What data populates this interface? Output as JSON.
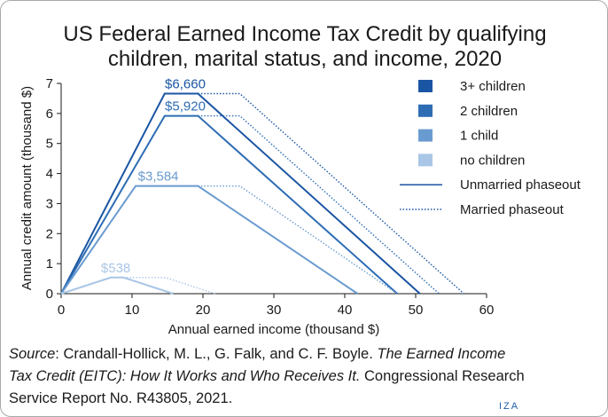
{
  "chart_data": {
    "type": "line",
    "title_lines": [
      "US Federal Earned Income Tax Credit by qualifying",
      "children, marital status, and income, 2020"
    ],
    "xlabel": "Annual earned income (thousand $)",
    "ylabel": "Annual credit amount (thousand $)",
    "xlim": [
      0,
      60
    ],
    "ylim": [
      0,
      7
    ],
    "x_ticks": [
      "0",
      "10",
      "20",
      "30",
      "40",
      "50",
      "60"
    ],
    "y_ticks": [
      "0",
      "1",
      "2",
      "3",
      "4",
      "5",
      "6",
      "7"
    ],
    "grid": false,
    "legend_position": "right",
    "legend": [
      {
        "label": "3+ children",
        "kind": "box",
        "color": "#1a55a3"
      },
      {
        "label": "2 children",
        "kind": "box",
        "color": "#2e6db4"
      },
      {
        "label": "1 child",
        "kind": "box",
        "color": "#6a9bd0"
      },
      {
        "label": "no children",
        "kind": "box",
        "color": "#a9c6e6"
      },
      {
        "label": "Unmarried phaseout",
        "kind": "line",
        "style": "solid",
        "color": "#1a55a3"
      },
      {
        "label": "Married phaseout",
        "kind": "line",
        "style": "dotted",
        "color": "#1a55a3"
      }
    ],
    "series": [
      {
        "color": "#1a55a3",
        "label": "$6,660",
        "label_x": 17.5,
        "label_y": 6.66,
        "unmarried": {
          "x": [
            0,
            14.6,
            19.3,
            50.6
          ],
          "y": [
            0,
            6.66,
            6.66,
            0
          ]
        },
        "married": {
          "x": [
            19.3,
            25.2,
            56.8
          ],
          "y": [
            6.66,
            6.66,
            0
          ]
        }
      },
      {
        "color": "#2e6db4",
        "label": "$5,920",
        "label_x": 17.5,
        "label_y": 5.92,
        "unmarried": {
          "x": [
            0,
            14.6,
            19.3,
            47.4
          ],
          "y": [
            0,
            5.92,
            5.92,
            0
          ]
        },
        "married": {
          "x": [
            19.3,
            25.2,
            53.3
          ],
          "y": [
            5.92,
            5.92,
            0
          ]
        }
      },
      {
        "color": "#6a9bd0",
        "label": "$3,584",
        "label_x": 13.7,
        "label_y": 3.584,
        "unmarried": {
          "x": [
            0,
            10.5,
            19.3,
            41.8
          ],
          "y": [
            0,
            3.584,
            3.584,
            0
          ]
        },
        "married": {
          "x": [
            19.3,
            25.2,
            47.4
          ],
          "y": [
            3.584,
            3.584,
            0
          ]
        }
      },
      {
        "color": "#a9c6e6",
        "label": "$538",
        "label_x": 7.7,
        "label_y": 0.538,
        "unmarried": {
          "x": [
            0,
            7.0,
            8.8,
            15.8
          ],
          "y": [
            0,
            0.538,
            0.538,
            0
          ]
        },
        "married": {
          "x": [
            8.8,
            14.7,
            21.7
          ],
          "y": [
            0.538,
            0.538,
            0
          ]
        }
      }
    ]
  },
  "source": {
    "label": "Source",
    "text_1": ": Crandall-Hollick, M. L., G. Falk, and C. F. Boyle. ",
    "title_italic_1": "The Earned Income",
    "title_italic_2": "Tax Credit (EITC): How It Works and Who Receives It.",
    "text_2": " Congressional Research",
    "text_3": "Service Report No. R43805, 2021."
  },
  "brand": "IZA"
}
